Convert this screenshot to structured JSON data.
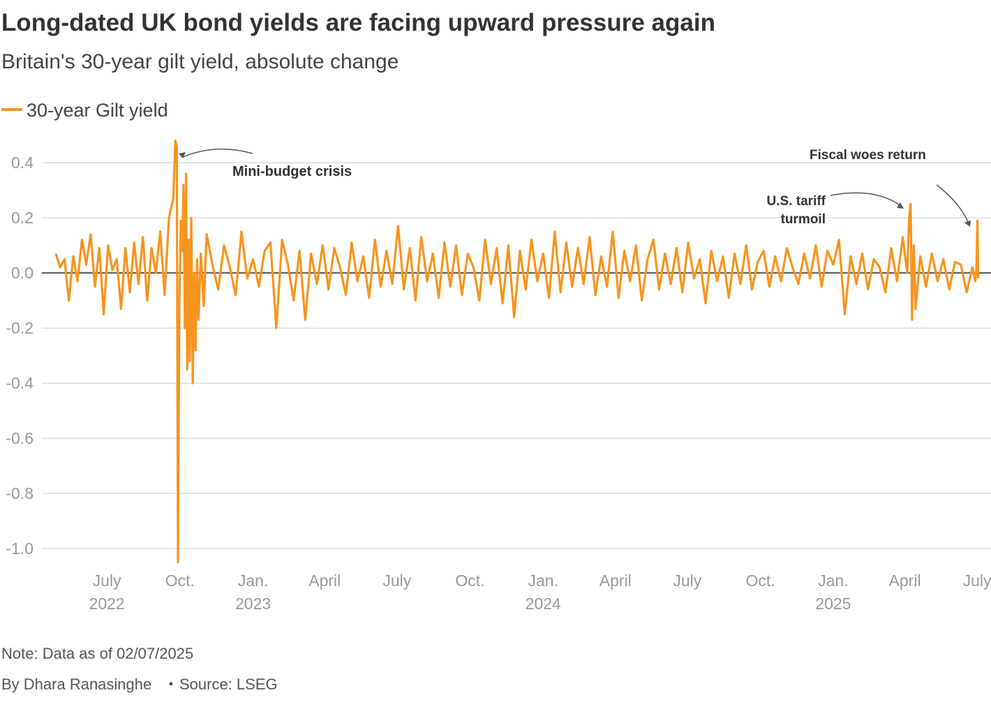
{
  "chart_data": {
    "type": "line",
    "title": "Long-dated UK bond yields are facing upward pressure again",
    "subtitle": "Britain's 30-year gilt yield, absolute change",
    "note": "Note: Data as of 02/07/2025",
    "credit": "By Dhara Ranasinghe",
    "source": "Source: LSEG",
    "annotations": [
      {
        "lines": [
          "Mini-budget crisis"
        ]
      },
      {
        "lines": [
          "U.S. tariff",
          "turmoil"
        ]
      },
      {
        "lines": [
          "Fiscal woes return"
        ]
      }
    ],
    "xlim": [
      2022.296,
      2025.544
    ],
    "ylim": [
      -1.086,
      0.484
    ],
    "grid": true,
    "xticks": [
      {
        "value": 2022.496,
        "label": "July",
        "year": "2022"
      },
      {
        "value": 2022.748,
        "label": "Oct."
      },
      {
        "value": 2023.0,
        "label": "Jan.",
        "year": "2023"
      },
      {
        "value": 2023.247,
        "label": "April"
      },
      {
        "value": 2023.496,
        "label": "July"
      },
      {
        "value": 2023.748,
        "label": "Oct."
      },
      {
        "value": 2024.0,
        "label": "Jan.",
        "year": "2024"
      },
      {
        "value": 2024.249,
        "label": "April"
      },
      {
        "value": 2024.497,
        "label": "July"
      },
      {
        "value": 2024.749,
        "label": "Oct."
      },
      {
        "value": 2025.0,
        "label": "Jan.",
        "year": "2025"
      },
      {
        "value": 2025.247,
        "label": "April"
      },
      {
        "value": 2025.496,
        "label": "July"
      }
    ],
    "yticks": [
      0.4,
      0.2,
      {
        "value": 0,
        "label": "0.0"
      },
      -0.2,
      -0.4,
      -0.6,
      -0.8,
      {
        "value": -1.0,
        "label": "-1.0"
      }
    ],
    "series": [
      {
        "name": "30-year Gilt yield",
        "color": "#f7941d",
        "x": [
          2022.32,
          2022.335,
          2022.35,
          2022.365,
          2022.38,
          2022.395,
          2022.41,
          2022.425,
          2022.44,
          2022.455,
          2022.47,
          2022.485,
          2022.5,
          2022.515,
          2022.53,
          2022.545,
          2022.56,
          2022.575,
          2022.59,
          2022.605,
          2022.62,
          2022.635,
          2022.65,
          2022.665,
          2022.68,
          2022.695,
          2022.71,
          2022.725,
          2022.732,
          2022.737,
          2022.741,
          2022.746,
          2022.751,
          2022.756,
          2022.76,
          2022.765,
          2022.769,
          2022.773,
          2022.778,
          2022.782,
          2022.787,
          2022.792,
          2022.797,
          2022.802,
          2022.807,
          2022.812,
          2022.82,
          2022.83,
          2022.84,
          2022.86,
          2022.88,
          2022.9,
          2022.92,
          2022.94,
          2022.96,
          2022.98,
          2023.0,
          2023.02,
          2023.04,
          2023.06,
          2023.08,
          2023.1,
          2023.12,
          2023.14,
          2023.16,
          2023.18,
          2023.2,
          2023.22,
          2023.24,
          2023.26,
          2023.28,
          2023.3,
          2023.32,
          2023.34,
          2023.36,
          2023.38,
          2023.4,
          2023.42,
          2023.44,
          2023.46,
          2023.48,
          2023.5,
          2023.52,
          2023.54,
          2023.56,
          2023.58,
          2023.6,
          2023.62,
          2023.64,
          2023.66,
          2023.68,
          2023.7,
          2023.72,
          2023.74,
          2023.76,
          2023.78,
          2023.8,
          2023.82,
          2023.84,
          2023.86,
          2023.88,
          2023.9,
          2023.92,
          2023.94,
          2023.96,
          2023.98,
          2024.0,
          2024.02,
          2024.04,
          2024.06,
          2024.08,
          2024.1,
          2024.12,
          2024.14,
          2024.16,
          2024.18,
          2024.2,
          2024.22,
          2024.24,
          2024.26,
          2024.28,
          2024.3,
          2024.32,
          2024.34,
          2024.36,
          2024.38,
          2024.4,
          2024.42,
          2024.44,
          2024.46,
          2024.48,
          2024.5,
          2024.52,
          2024.54,
          2024.56,
          2024.58,
          2024.6,
          2024.62,
          2024.64,
          2024.66,
          2024.68,
          2024.7,
          2024.72,
          2024.74,
          2024.76,
          2024.78,
          2024.8,
          2024.82,
          2024.84,
          2024.86,
          2024.88,
          2024.9,
          2024.92,
          2024.94,
          2024.96,
          2024.98,
          2025.0,
          2025.02,
          2025.04,
          2025.06,
          2025.08,
          2025.1,
          2025.12,
          2025.14,
          2025.16,
          2025.18,
          2025.2,
          2025.22,
          2025.24,
          2025.255,
          2025.262,
          2025.267,
          2025.272,
          2025.278,
          2025.284,
          2025.3,
          2025.32,
          2025.34,
          2025.36,
          2025.38,
          2025.4,
          2025.42,
          2025.44,
          2025.46,
          2025.48,
          2025.49,
          2025.494,
          2025.497,
          2025.5
        ],
        "values": [
          0.07,
          0.02,
          0.05,
          -0.1,
          0.06,
          -0.03,
          0.12,
          0.03,
          0.14,
          -0.05,
          0.09,
          -0.15,
          0.1,
          0.01,
          0.05,
          -0.13,
          0.09,
          -0.07,
          0.11,
          -0.04,
          0.13,
          -0.1,
          0.09,
          0.0,
          0.15,
          -0.08,
          0.2,
          0.27,
          0.48,
          0.46,
          -1.05,
          -0.12,
          0.19,
          0.08,
          0.32,
          -0.2,
          0.36,
          -0.35,
          0.12,
          -0.32,
          0.2,
          -0.4,
          0.0,
          -0.28,
          0.05,
          -0.17,
          0.07,
          -0.12,
          0.14,
          0.03,
          -0.06,
          0.1,
          0.02,
          -0.08,
          0.15,
          -0.02,
          0.05,
          -0.05,
          0.08,
          0.11,
          -0.2,
          0.12,
          0.03,
          -0.1,
          0.08,
          -0.17,
          0.07,
          -0.04,
          0.1,
          -0.06,
          0.09,
          0.02,
          -0.08,
          0.11,
          -0.03,
          0.06,
          -0.09,
          0.12,
          -0.05,
          0.08,
          -0.04,
          0.17,
          -0.06,
          0.09,
          -0.1,
          0.13,
          -0.03,
          0.07,
          -0.09,
          0.11,
          -0.05,
          0.1,
          -0.08,
          0.07,
          0.02,
          -0.1,
          0.12,
          -0.04,
          0.09,
          -0.11,
          0.1,
          -0.16,
          0.08,
          -0.06,
          0.12,
          -0.03,
          0.07,
          -0.09,
          0.15,
          -0.07,
          0.11,
          -0.05,
          0.09,
          -0.04,
          0.13,
          -0.08,
          0.06,
          -0.05,
          0.15,
          -0.09,
          0.08,
          -0.03,
          0.1,
          -0.1,
          0.05,
          0.12,
          -0.06,
          0.07,
          -0.04,
          0.09,
          -0.07,
          0.11,
          -0.02,
          0.05,
          -0.11,
          0.08,
          -0.03,
          0.06,
          -0.09,
          0.07,
          -0.04,
          0.1,
          -0.06,
          0.04,
          0.08,
          -0.05,
          0.06,
          -0.03,
          0.09,
          0.02,
          -0.04,
          0.07,
          -0.02,
          0.1,
          -0.05,
          0.08,
          0.03,
          0.12,
          -0.15,
          0.06,
          -0.04,
          0.07,
          -0.06,
          0.05,
          0.02,
          -0.07,
          0.09,
          -0.03,
          0.13,
          0.0,
          0.2,
          0.25,
          -0.17,
          0.1,
          -0.13,
          0.06,
          -0.05,
          0.07,
          -0.03,
          0.05,
          -0.06,
          0.04,
          0.03,
          -0.07,
          0.02,
          -0.03,
          0.02,
          0.19,
          -0.02
        ]
      }
    ]
  }
}
